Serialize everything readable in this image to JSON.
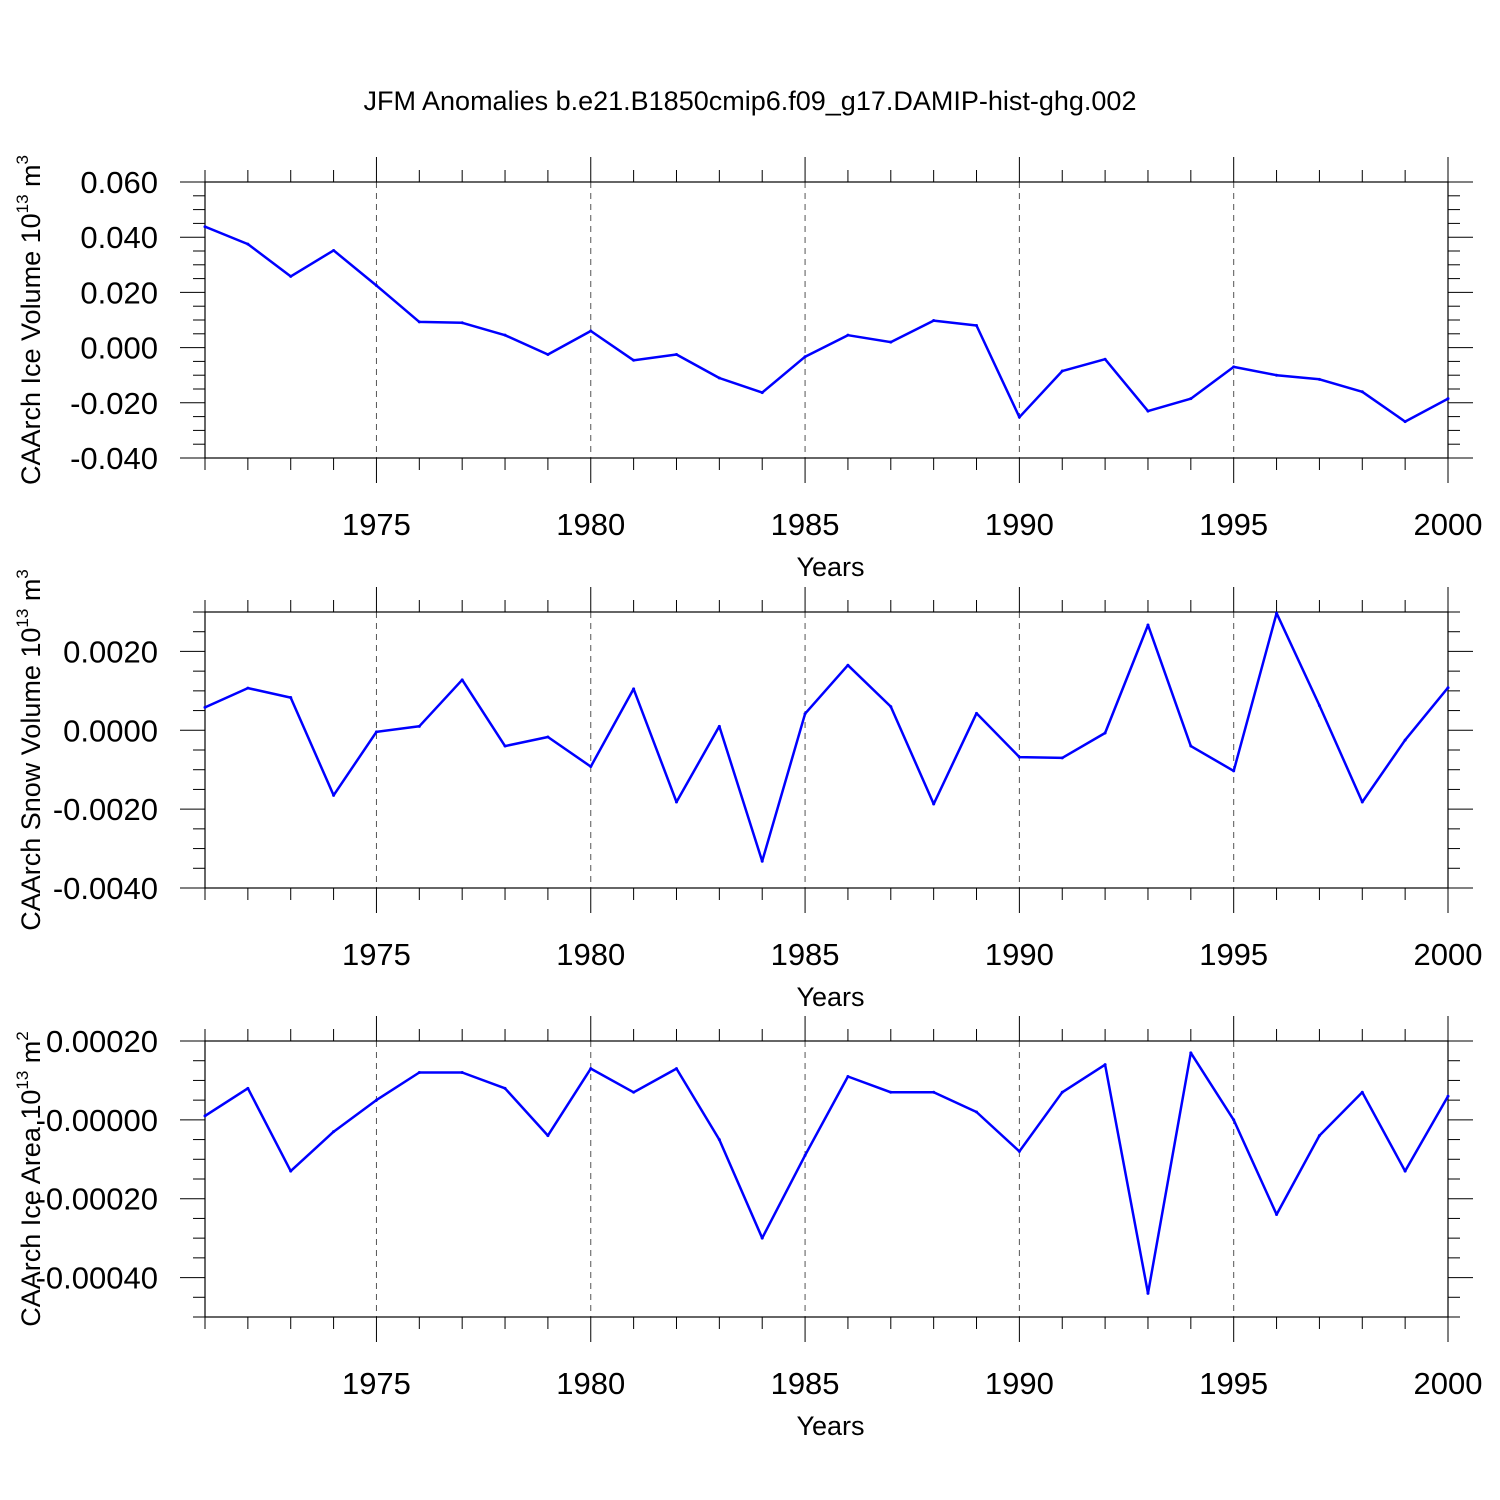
{
  "title": "JFM Anomalies b.e21.B1850cmip6.f09_g17.DAMIP-hist-ghg.002",
  "line_color": "#0000ff",
  "chart_data": [
    {
      "type": "line",
      "xlabel": "Years",
      "ylabel": "CAArch Ice Volume 10",
      "ylabel_exp": "13",
      "ylabel_unit": " m",
      "ylabel_unit_exp": "3",
      "xlim": [
        1971,
        2000
      ],
      "ylim": [
        -0.04,
        0.06
      ],
      "yticks": [
        -0.04,
        -0.02,
        0.0,
        0.02,
        0.04,
        0.06
      ],
      "ytick_labels": [
        "-0.040",
        "-0.020",
        "0.000",
        "0.020",
        "0.040",
        "0.060"
      ],
      "ytick_minor_step": 0.005,
      "xticks": [
        1975,
        1980,
        1985,
        1990,
        1995,
        2000
      ],
      "xtick_labels": [
        "1975",
        "1980",
        "1985",
        "1990",
        "1995",
        "2000"
      ],
      "series": [
        {
          "name": "CAArch Ice Volume",
          "x": [
            1971,
            1972,
            1973,
            1974,
            1975,
            1976,
            1977,
            1978,
            1979,
            1980,
            1981,
            1982,
            1983,
            1984,
            1985,
            1986,
            1987,
            1988,
            1989,
            1990,
            1991,
            1992,
            1993,
            1994,
            1995,
            1996,
            1997,
            1998,
            1999,
            2000
          ],
          "values": [
            0.0438,
            0.0375,
            0.0258,
            0.0352,
            0.0225,
            0.0093,
            0.009,
            0.0045,
            -0.0025,
            0.006,
            -0.0046,
            -0.0025,
            -0.011,
            -0.0163,
            -0.0033,
            0.0045,
            0.002,
            0.0098,
            0.008,
            -0.0252,
            -0.0085,
            -0.0042,
            -0.023,
            -0.0185,
            -0.007,
            -0.01,
            -0.0115,
            -0.016,
            -0.0268,
            -0.0185
          ]
        }
      ]
    },
    {
      "type": "line",
      "xlabel": "Years",
      "ylabel": "CAArch Snow Volume 10",
      "ylabel_exp": "13",
      "ylabel_unit": " m",
      "ylabel_unit_exp": "3",
      "xlim": [
        1971,
        2000
      ],
      "ylim": [
        -0.004,
        0.003
      ],
      "yticks": [
        -0.004,
        -0.002,
        0.0,
        0.002
      ],
      "ytick_labels": [
        "-0.0040",
        "-0.0020",
        "0.0000",
        "0.0020"
      ],
      "ytick_minor_step": 0.0005,
      "xticks": [
        1975,
        1980,
        1985,
        1990,
        1995,
        2000
      ],
      "xtick_labels": [
        "1975",
        "1980",
        "1985",
        "1990",
        "1995",
        "2000"
      ],
      "series": [
        {
          "name": "CAArch Snow Volume",
          "x": [
            1971,
            1972,
            1973,
            1974,
            1975,
            1976,
            1977,
            1978,
            1979,
            1980,
            1981,
            1982,
            1983,
            1984,
            1985,
            1986,
            1987,
            1988,
            1989,
            1990,
            1991,
            1992,
            1993,
            1994,
            1995,
            1996,
            1997,
            1998,
            1999,
            2000
          ],
          "values": [
            0.00058,
            0.00107,
            0.00083,
            -0.00165,
            -4e-05,
            0.0001,
            0.00128,
            -0.0004,
            -0.00017,
            -0.00092,
            0.00105,
            -0.00182,
            0.0001,
            -0.00332,
            0.00042,
            0.00165,
            0.0006,
            -0.00187,
            0.00043,
            -0.00068,
            -0.0007,
            -7e-05,
            0.00267,
            -0.0004,
            -0.00103,
            0.00297,
            0.00063,
            -0.00182,
            -0.00025,
            0.00108
          ]
        }
      ]
    },
    {
      "type": "line",
      "xlabel": "Years",
      "ylabel": "CAArch Ice Area 10",
      "ylabel_exp": "13",
      "ylabel_unit": " m",
      "ylabel_unit_exp": "2",
      "xlim": [
        1971,
        2000
      ],
      "ylim": [
        -0.0005,
        0.0002
      ],
      "yticks": [
        -0.0004,
        -0.0002,
        0.0,
        0.0002
      ],
      "ytick_labels": [
        "-0.00040",
        "-0.00020",
        "-0.00000",
        "0.00020"
      ],
      "ytick_minor_step": 5e-05,
      "xticks": [
        1975,
        1980,
        1985,
        1990,
        1995,
        2000
      ],
      "xtick_labels": [
        "1975",
        "1980",
        "1985",
        "1990",
        "1995",
        "2000"
      ],
      "series": [
        {
          "name": "CAArch Ice Area",
          "x": [
            1971,
            1972,
            1973,
            1974,
            1975,
            1976,
            1977,
            1978,
            1979,
            1980,
            1981,
            1982,
            1983,
            1984,
            1985,
            1986,
            1987,
            1988,
            1989,
            1990,
            1991,
            1992,
            1993,
            1994,
            1995,
            1996,
            1997,
            1998,
            1999,
            2000
          ],
          "values": [
            1e-05,
            8e-05,
            -0.00013,
            -3e-05,
            5e-05,
            0.00012,
            0.00012,
            8e-05,
            -4e-05,
            0.00013,
            7e-05,
            0.00013,
            -5e-05,
            -0.0003,
            -9e-05,
            0.00011,
            7e-05,
            7e-05,
            2e-05,
            -8e-05,
            7e-05,
            0.00014,
            -0.00044,
            0.00017,
            0.0,
            -0.00024,
            -4e-05,
            7e-05,
            -0.00013,
            6e-05
          ]
        }
      ]
    }
  ]
}
